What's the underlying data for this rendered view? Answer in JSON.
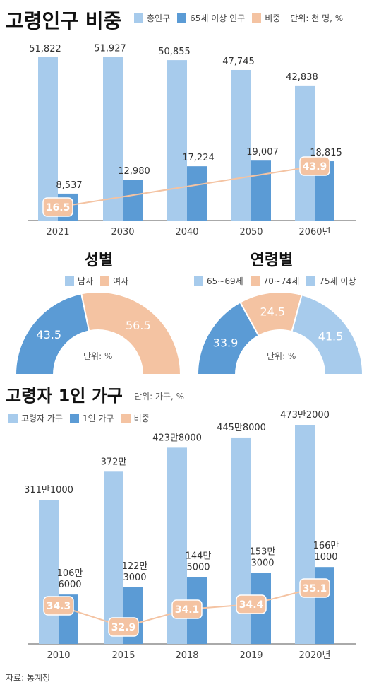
{
  "colors": {
    "total": "#a7cbec",
    "senior": "#5b9bd5",
    "ratio": "#f4c3a2",
    "ratio_text": "#ffffff",
    "line": "#f4c3a2"
  },
  "section1": {
    "title": "고령인구 비중",
    "legend": [
      "총인구",
      "65세 이상 인구",
      "비중"
    ],
    "unit": "단위: 천 명, %"
  },
  "gender": {
    "title": "성별",
    "legend": [
      "남자",
      "여자"
    ],
    "unit": "단위: %"
  },
  "age": {
    "title": "연령별",
    "legend": [
      "65~69세",
      "70~74세",
      "75세 이상"
    ],
    "unit": "단위: %"
  },
  "section2": {
    "title": "고령자 1인 가구",
    "unit": "단위: 가구, %",
    "legend": [
      "고령자 가구",
      "1인 가구",
      "비중"
    ]
  },
  "source": "자료: 통계청",
  "chart_data": [
    {
      "type": "bar",
      "categories": [
        "2021",
        "2030",
        "2040",
        "2050",
        "2060년"
      ],
      "series": [
        {
          "name": "총인구",
          "values": [
            51822,
            51927,
            50855,
            47745,
            42838
          ],
          "labels": [
            "51,822",
            "51,927",
            "50,855",
            "47,745",
            "42,838"
          ]
        },
        {
          "name": "65세 이상 인구",
          "values": [
            8537,
            12980,
            17224,
            19007,
            18815
          ],
          "labels": [
            "8,537",
            "12,980",
            "17,224",
            "19,007",
            "18,815"
          ]
        },
        {
          "name": "비중",
          "values": [
            16.5,
            null,
            null,
            null,
            43.9
          ],
          "labels": [
            "16.5",
            "",
            "",
            "",
            "43.9"
          ]
        }
      ],
      "title": "고령인구 비중",
      "unit": "단위: 천 명, %"
    },
    {
      "type": "pie",
      "title": "성별",
      "categories": [
        "남자",
        "여자"
      ],
      "values": [
        43.5,
        56.5
      ],
      "labels": [
        "43.5",
        "56.5"
      ]
    },
    {
      "type": "pie",
      "title": "연령별",
      "categories": [
        "65~69세",
        "70~74세",
        "75세 이상"
      ],
      "values": [
        33.9,
        24.5,
        41.5
      ],
      "labels": [
        "33.9",
        "24.5",
        "41.5"
      ]
    },
    {
      "type": "bar",
      "categories": [
        "2010",
        "2015",
        "2018",
        "2019",
        "2020년"
      ],
      "series": [
        {
          "name": "고령자 가구",
          "values": [
            3111000,
            3720000,
            4238000,
            4458000,
            4732000
          ],
          "labels": [
            "311만1000",
            "372만",
            "423만8000",
            "445만8000",
            "473만2000"
          ]
        },
        {
          "name": "1인 가구",
          "values": [
            1066000,
            1223000,
            1445000,
            1533000,
            1661000
          ],
          "labels": [
            "106만\n6000",
            "122만\n3000",
            "144만\n5000",
            "153만\n3000",
            "166만\n1000"
          ]
        },
        {
          "name": "비중",
          "values": [
            34.3,
            32.9,
            34.1,
            34.4,
            35.1
          ],
          "labels": [
            "34.3",
            "32.9",
            "34.1",
            "34.4",
            "35.1"
          ]
        }
      ],
      "title": "고령자 1인 가구",
      "unit": "단위: 가구, %"
    }
  ]
}
